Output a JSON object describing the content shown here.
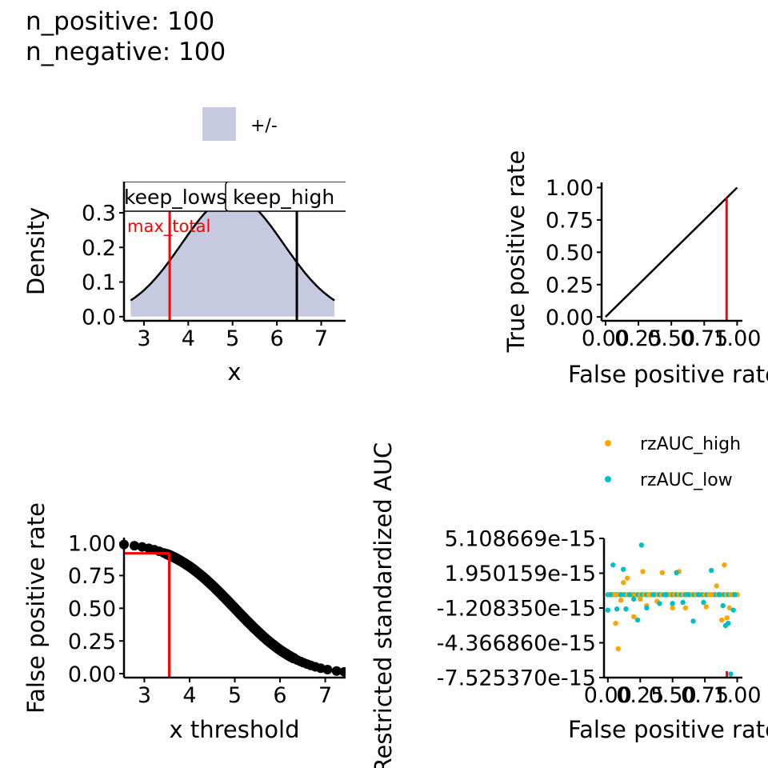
{
  "header": {
    "line1": "n_positive: 100",
    "line2": "n_negative: 100"
  },
  "colors": {
    "fill": "#c5cae0",
    "red": "#ff0000",
    "orange": "#ffa500",
    "teal": "#00bfc4",
    "black": "#000000"
  },
  "chart_data": [
    {
      "id": "density",
      "type": "area",
      "xlabel": "x",
      "ylabel": "Density",
      "xlim": [
        2.55,
        7.55
      ],
      "ylim": [
        -0.012,
        0.39
      ],
      "xticks": [
        3,
        4,
        5,
        6,
        7
      ],
      "yticks": [
        0.0,
        0.1,
        0.2,
        0.3
      ],
      "ytick_labels": [
        "0.0",
        "0.1",
        "0.2",
        "0.3"
      ],
      "legend": [
        {
          "label": "+/-",
          "color": "#c5cae0"
        }
      ],
      "curve": {
        "mean": 5.0,
        "sd": 1.15,
        "xmin": 2.7,
        "xmax": 7.3
      },
      "vlines": [
        {
          "x": 3.58,
          "color": "#ff0000",
          "label": "max_total"
        },
        {
          "x": 6.45,
          "color": "#000000"
        }
      ],
      "labels": [
        "keep_lows",
        "keep_high"
      ]
    },
    {
      "id": "roc",
      "type": "line",
      "xlabel": "False positive rate",
      "ylabel": "True positive rate",
      "xlim": [
        -0.03,
        1.04
      ],
      "ylim": [
        -0.03,
        1.04
      ],
      "xtick_labels": [
        "0.00",
        "0.25",
        "0.50",
        "0.75",
        "1.00"
      ],
      "yticks": [
        0.0,
        0.25,
        0.5,
        0.75,
        1.0
      ],
      "ytick_labels": [
        "0.00",
        "0.25",
        "0.50",
        "0.75",
        "1.00"
      ],
      "series": [
        {
          "x": [
            0,
            1
          ],
          "y": [
            0,
            1
          ]
        }
      ],
      "vline": {
        "x": 0.92,
        "y": 0.92,
        "color": "#ff0000"
      }
    },
    {
      "id": "fpr_threshold",
      "type": "scatter",
      "xlabel": "x threshold",
      "ylabel": "False positive rate",
      "xlim": [
        2.55,
        7.45
      ],
      "ylim": [
        -0.03,
        1.04
      ],
      "xticks": [
        3,
        4,
        5,
        6,
        7
      ],
      "yticks": [
        0.0,
        0.25,
        0.5,
        0.75,
        1.0
      ],
      "ytick_labels": [
        "0.00",
        "0.25",
        "0.50",
        "0.75",
        "1.00"
      ],
      "curve": {
        "mean": 5.0,
        "sd": 1.1
      },
      "points_x": [
        2.55,
        2.78,
        2.95,
        3.1,
        3.22,
        3.33,
        3.43,
        3.5,
        6.2,
        6.3,
        6.38,
        6.45,
        6.52,
        6.6,
        6.68,
        6.78,
        6.9,
        7.05,
        7.25,
        7.42
      ],
      "red_marker": {
        "x": 3.55,
        "y": 0.92,
        "color": "#ff0000"
      }
    },
    {
      "id": "rzauc",
      "type": "scatter",
      "xlabel": "False positive rate",
      "ylabel": "Restricted standardized AUC",
      "xlim": [
        -0.03,
        1.04
      ],
      "ylim": [
        -7.52537e-15,
        5.108669e-15
      ],
      "xtick_labels": [
        "0.00",
        "0.25",
        "0.50",
        "0.75",
        "1.00"
      ],
      "yticks": [
        5.108669e-15,
        1.950159e-15,
        -1.20835e-15,
        -4.36686e-15,
        -7.52537e-15
      ],
      "ytick_labels": [
        "5.108669e-15",
        "1.950159e-15",
        "-1.208350e-15",
        "-4.366860e-15",
        "-7.525370e-15"
      ],
      "legend": [
        {
          "label": "rzAUC_high",
          "color": "#ffa500"
        },
        {
          "label": "rzAUC_low",
          "color": "#00bfc4"
        }
      ],
      "series": [
        {
          "name": "rzAUC_high",
          "color": "#ffa500",
          "x": [
            0.05,
            0.06,
            0.08,
            0.1,
            0.12,
            0.14,
            0.15,
            0.18,
            0.2,
            0.25,
            0.27,
            0.3,
            0.33,
            0.38,
            0.42,
            0.47,
            0.5,
            0.55,
            0.6,
            0.63,
            0.66,
            0.7,
            0.76,
            0.8,
            0.84,
            0.88,
            0.9,
            0.92,
            0.94,
            0.97,
            1.0
          ],
          "y": [
            0.0,
            -2.6e-15,
            -4.9e-15,
            -5e-16,
            1.1e-15,
            -1.3e-15,
            1.5e-15,
            0.0,
            -2e-15,
            -4e-16,
            2.1e-15,
            -1e-15,
            0.0,
            -6e-16,
            2e-15,
            0.0,
            -1.2e-15,
            2.1e-15,
            -1.2e-15,
            0.0,
            -2.4e-15,
            0.0,
            -1.1e-15,
            0.0,
            8e-16,
            -2.3e-15,
            2.7e-15,
            -2.1e-15,
            -1.2e-15,
            0.0,
            0.0
          ]
        },
        {
          "name": "rzAUC_low",
          "color": "#00bfc4",
          "x": [
            0.0,
            0.02,
            0.04,
            0.07,
            0.1,
            0.12,
            0.14,
            0.17,
            0.2,
            0.23,
            0.26,
            0.3,
            0.35,
            0.4,
            0.45,
            0.5,
            0.53,
            0.58,
            0.62,
            0.66,
            0.7,
            0.74,
            0.8,
            0.86,
            0.89,
            0.91,
            0.93,
            0.95,
            0.97,
            0.98
          ],
          "y": [
            -1.4e-15,
            0.0,
            2.7e-15,
            -1.3e-15,
            0.0,
            2.3e-15,
            -1.3e-15,
            0.0,
            -4e-16,
            -2.3e-15,
            4.5e-15,
            -1.2e-15,
            0.0,
            -8e-16,
            0.0,
            -8e-16,
            2e-15,
            -7e-16,
            0.0,
            -2.4e-15,
            0.0,
            -7e-16,
            2.2e-15,
            0.0,
            -1e-15,
            -2.8e-15,
            -2.6e-15,
            -7.2e-15,
            -1.4e-15,
            0.0
          ]
        }
      ],
      "vline": {
        "x": 0.92,
        "color": "#ff0000"
      }
    }
  ]
}
